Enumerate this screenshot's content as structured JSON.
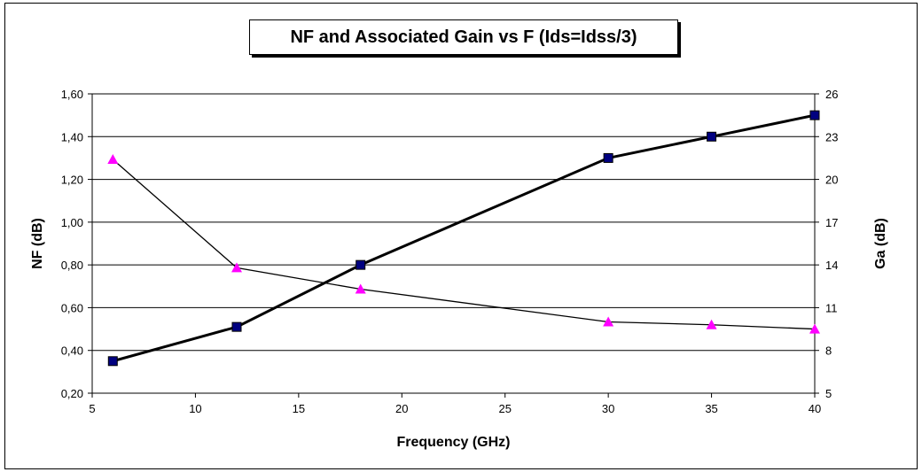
{
  "chart_data": {
    "type": "line",
    "title": "NF and Associated Gain vs F (Ids=Idss/3)",
    "xlabel": "Frequency (GHz)",
    "ylabel_left": "NF (dB)",
    "ylabel_right": "Ga (dB)",
    "x_ticks": [
      "5",
      "10",
      "15",
      "20",
      "25",
      "30",
      "35",
      "40"
    ],
    "y_left_ticks": [
      "0,20",
      "0,40",
      "0,60",
      "0,80",
      "1,00",
      "1,20",
      "1,40",
      "1,60"
    ],
    "y_right_ticks": [
      "5",
      "8",
      "11",
      "14",
      "17",
      "20",
      "23",
      "26"
    ],
    "xlim": [
      5,
      40
    ],
    "ylim_left": [
      0.2,
      1.6
    ],
    "ylim_right": [
      5,
      26
    ],
    "grid": true,
    "series": [
      {
        "axis": "left",
        "color": "#000000",
        "marker": "square",
        "marker_color": "#000080",
        "x": [
          6,
          12,
          18,
          30,
          35,
          40
        ],
        "values": [
          0.35,
          0.51,
          0.8,
          1.3,
          1.4,
          1.5
        ]
      },
      {
        "axis": "right",
        "color": "#000000",
        "marker": "triangle",
        "marker_color": "#ff00ff",
        "x": [
          6,
          12,
          18,
          30,
          35,
          40
        ],
        "values": [
          21.4,
          13.8,
          12.3,
          10.0,
          9.8,
          9.5
        ]
      }
    ]
  }
}
